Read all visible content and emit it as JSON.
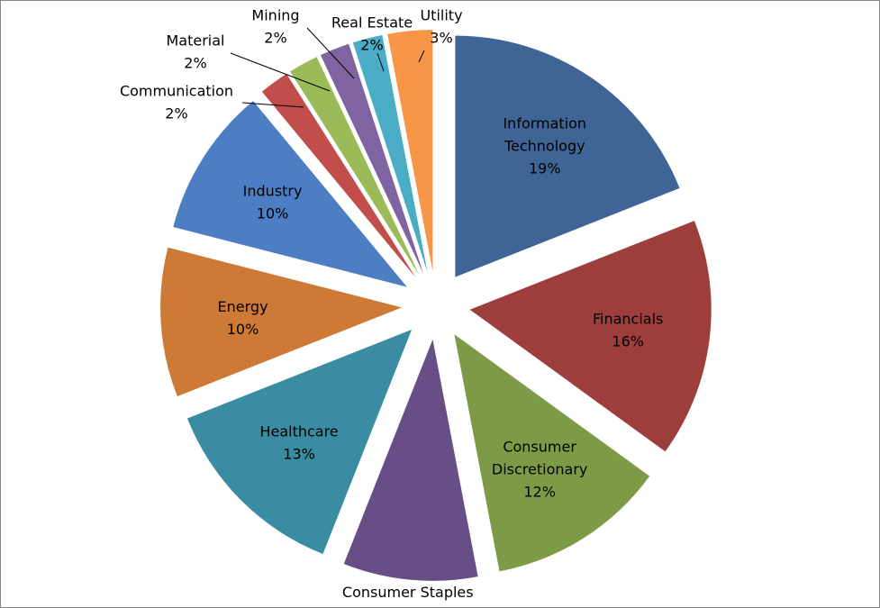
{
  "chart_data": {
    "type": "pie",
    "exploded": true,
    "start_angle_deg": 0,
    "direction": "clockwise",
    "labels_show": [
      "category",
      "percent"
    ],
    "slices": [
      {
        "category": "Information Technology",
        "percent": "19%",
        "value": 19,
        "color": "#3F6596"
      },
      {
        "category": "Financials",
        "percent": "16%",
        "value": 16,
        "color": "#9C3F3C"
      },
      {
        "category": "Consumer Discretionary",
        "percent": "12%",
        "value": 12,
        "color": "#7D9B47"
      },
      {
        "category": "Consumer Staples",
        "percent": "9%",
        "value": 9,
        "color": "#674E86"
      },
      {
        "category": "Healthcare",
        "percent": "13%",
        "value": 13,
        "color": "#3A8CA2"
      },
      {
        "category": "Energy",
        "percent": "10%",
        "value": 10,
        "color": "#CE7A37"
      },
      {
        "category": "Industry",
        "percent": "10%",
        "value": 10,
        "color": "#4D7EC4"
      },
      {
        "category": "Communication",
        "percent": "2%",
        "value": 2,
        "color": "#C14E4B"
      },
      {
        "category": "Material",
        "percent": "2%",
        "value": 2,
        "color": "#9BBB59"
      },
      {
        "category": "Mining",
        "percent": "2%",
        "value": 2,
        "color": "#8064A2"
      },
      {
        "category": "Real Estate",
        "percent": "2%",
        "value": 2,
        "color": "#4BACC6"
      },
      {
        "category": "Utility",
        "percent": "3%",
        "value": 3,
        "color": "#F79646"
      }
    ]
  }
}
